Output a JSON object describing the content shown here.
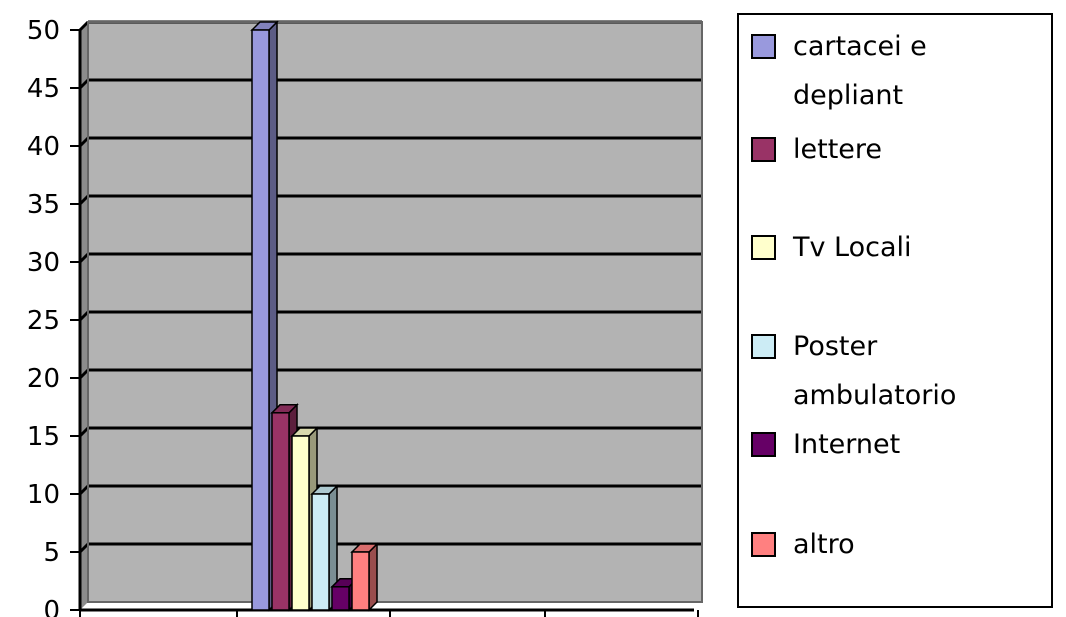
{
  "chart_data": {
    "type": "bar",
    "title": "",
    "xlabel": "",
    "ylabel": "",
    "ylim": [
      0,
      50
    ],
    "yticks": [
      "0",
      "5",
      "10",
      "15",
      "20",
      "25",
      "30",
      "35",
      "40",
      "45",
      "50"
    ],
    "grid": true,
    "legend_position": "right",
    "plot_background": "#b3b3b3",
    "series": [
      {
        "name": "cartacei e depliant",
        "value": 50,
        "color": "#9999dd"
      },
      {
        "name": "lettere",
        "value": 17,
        "color": "#993366"
      },
      {
        "name": "Tv Locali",
        "value": 15,
        "color": "#ffffcc"
      },
      {
        "name": "Poster ambulatorio",
        "value": 10,
        "color": "#ccecf5"
      },
      {
        "name": "Internet",
        "value": 2,
        "color": "#660066"
      },
      {
        "name": "altro",
        "value": 5,
        "color": "#ff8080"
      }
    ]
  }
}
